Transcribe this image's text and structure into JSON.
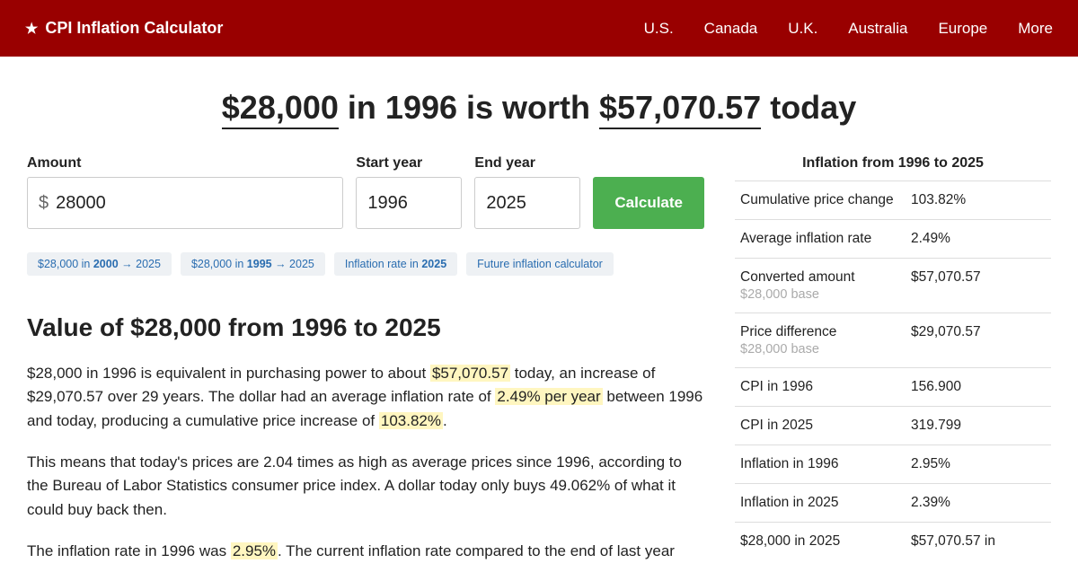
{
  "header": {
    "brand": "CPI Inflation Calculator",
    "nav": [
      "U.S.",
      "Canada",
      "U.K.",
      "Australia",
      "Europe",
      "More"
    ]
  },
  "headline": {
    "amount": "$28,000",
    "mid1": " in 1996 is worth ",
    "result": "$57,070.57",
    "mid2": " today"
  },
  "form": {
    "amount_label": "Amount",
    "currency": "$",
    "amount_value": "28000",
    "start_label": "Start year",
    "start_value": "1996",
    "end_label": "End year",
    "end_value": "2025",
    "button": "Calculate"
  },
  "pills": {
    "p1a": "$28,000 in ",
    "p1b": "2000",
    "p1c": " → 2025",
    "p2a": "$28,000 in ",
    "p2b": "1995",
    "p2c": " → 2025",
    "p3a": "Inflation rate in ",
    "p3b": "2025",
    "p4": "Future inflation calculator"
  },
  "section_title": "Value of $28,000 from 1996 to 2025",
  "para1": {
    "a": "$28,000 in 1996 is equivalent in purchasing power to about ",
    "h1": "$57,070.57",
    "b": " today, an increase of $29,070.57 over 29 years. The dollar had an average inflation rate of ",
    "h2": "2.49% per year",
    "c": " between 1996 and today, producing a cumulative price increase of ",
    "h3": "103.82%",
    "d": "."
  },
  "para2": "This means that today's prices are 2.04 times as high as average prices since 1996, according to the Bureau of Labor Statistics consumer price index. A dollar today only buys 49.062% of what it could buy back then.",
  "para3": {
    "a": "The inflation rate in 1996 was ",
    "h1": "2.95%",
    "b": ". The current inflation rate compared to the end of last year"
  },
  "sidebar": {
    "title": "Inflation from 1996 to 2025",
    "rows": [
      {
        "label": "Cumulative price change",
        "sub": "",
        "value": "103.82%"
      },
      {
        "label": "Average inflation rate",
        "sub": "",
        "value": "2.49%"
      },
      {
        "label": "Converted amount",
        "sub": "$28,000 base",
        "value": "$57,070.57"
      },
      {
        "label": "Price difference",
        "sub": "$28,000 base",
        "value": "$29,070.57"
      },
      {
        "label": "CPI in 1996",
        "sub": "",
        "value": "156.900"
      },
      {
        "label": "CPI in 2025",
        "sub": "",
        "value": "319.799"
      },
      {
        "label": "Inflation in 1996",
        "sub": "",
        "value": "2.95%"
      },
      {
        "label": "Inflation in 2025",
        "sub": "",
        "value": "2.39%"
      },
      {
        "label": "$28,000 in 2025",
        "sub": "",
        "value": "$57,070.57 in"
      }
    ]
  }
}
